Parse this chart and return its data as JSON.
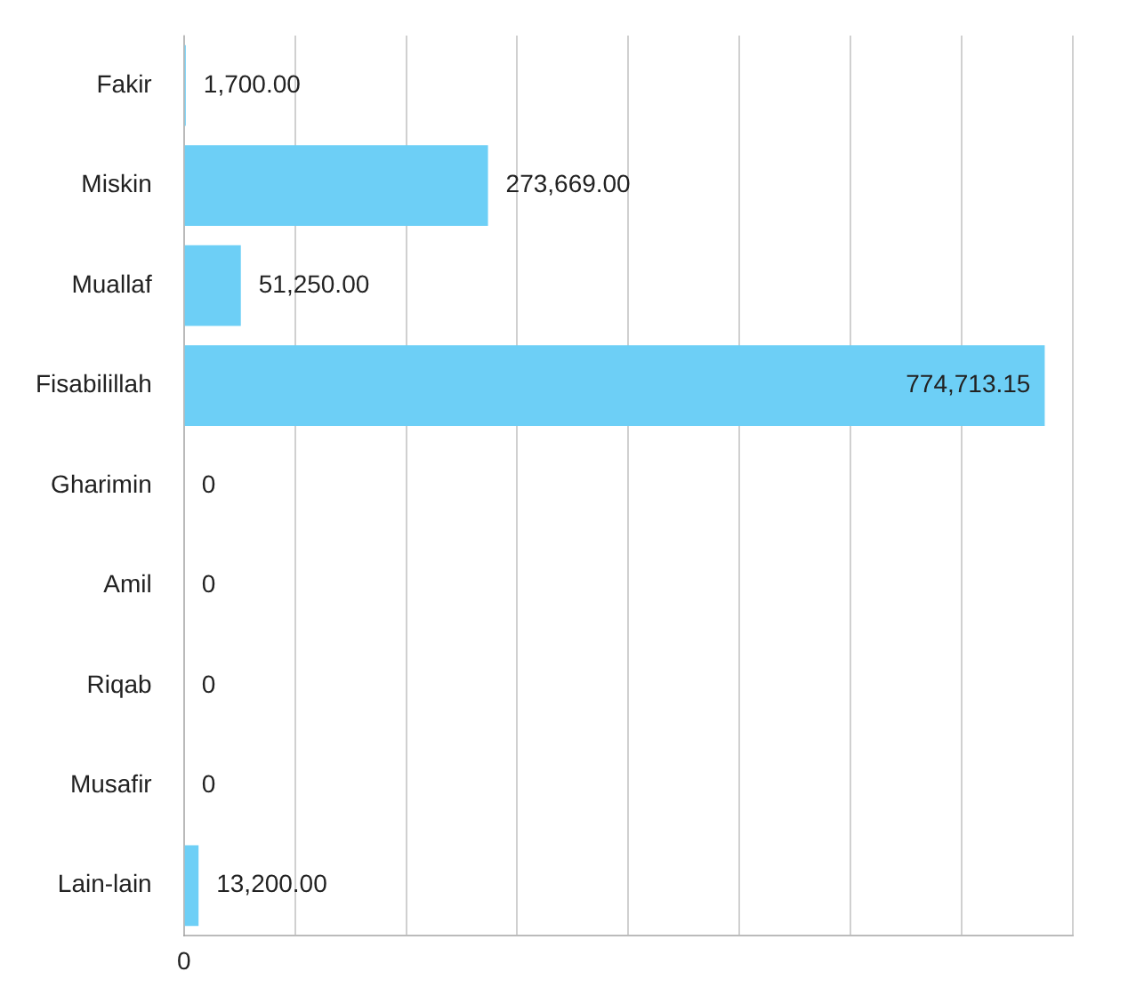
{
  "chart_data": {
    "type": "bar",
    "orientation": "horizontal",
    "categories": [
      "Fakir",
      "Miskin",
      "Muallaf",
      "Fisabilillah",
      "Gharimin",
      "Amil",
      "Riqab",
      "Musafir",
      "Lain-lain"
    ],
    "values": [
      1700,
      273669,
      51250,
      774713.15,
      0,
      0,
      0,
      0,
      13200
    ],
    "value_labels": [
      "1,700.00",
      "273,669.00",
      "51,250.00",
      "774,713.15",
      "0",
      "0",
      "0",
      "0",
      "13,200.00"
    ],
    "color": "#6dcff6",
    "tick_labels": "y",
    "annotations": [
      "0"
    ],
    "grid": "x"
  }
}
